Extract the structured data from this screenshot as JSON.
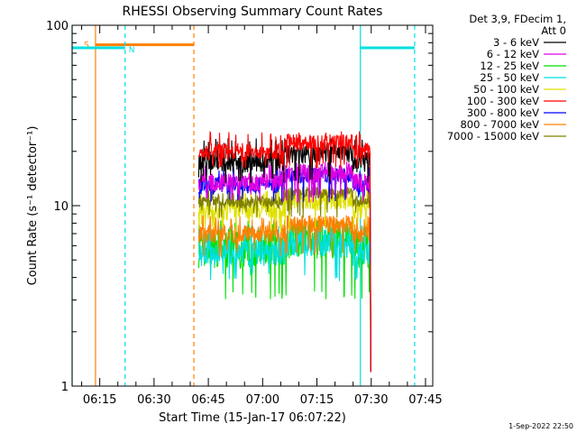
{
  "chart_data": {
    "type": "line",
    "title": "RHESSI Observing Summary Count Rates",
    "xlabel": "Start Time (15-Jan-17 06:07:22)",
    "ylabel": "Count Rate (s⁻¹ detector⁻¹)",
    "yscale": "log",
    "ylim": [
      1,
      100
    ],
    "xlim": [
      "06:07:22",
      "07:47:00"
    ],
    "x_tick_labels": [
      "06:15",
      "06:30",
      "06:45",
      "07:00",
      "07:15",
      "07:30",
      "07:45"
    ],
    "y_tick_labels": [
      "1",
      "10",
      "100"
    ],
    "legend_header": [
      "Det 3,9, FDecim 1,",
      "Att 0"
    ],
    "legend_position": "top-right",
    "footer_date": "1-Sep-2022 22:50",
    "data_start": "06:42:20",
    "data_end": "07:29:40",
    "series": [
      {
        "name": "3 - 6 keV",
        "color": "#000000",
        "level": 17.5,
        "upper": 23,
        "lower": 14
      },
      {
        "name": "6 - 12 keV",
        "color": "#e000e0",
        "level": 13.5,
        "upper": 17,
        "lower": 11
      },
      {
        "name": "12 - 25 keV",
        "color": "#00e000",
        "level": 5.8,
        "upper": 8,
        "lower": 3.2
      },
      {
        "name": "25 - 50 keV",
        "color": "#00e0e0",
        "level": 5.5,
        "upper": 7.5,
        "lower": 4
      },
      {
        "name": "50 - 100 keV",
        "color": "#e0e000",
        "level": 9.5,
        "upper": 12,
        "lower": 7.5
      },
      {
        "name": "100 - 300 keV",
        "color": "#ff0000",
        "level": 20,
        "upper": 25,
        "lower": 17
      },
      {
        "name": "300 - 800 keV",
        "color": "#0000ff",
        "level": 13,
        "upper": 16,
        "lower": 11
      },
      {
        "name": "800 - 7000 keV",
        "color": "#ff8000",
        "level": 7,
        "upper": 8.5,
        "lower": 5.5
      },
      {
        "name": "7000 - 15000 keV",
        "color": "#808000",
        "level": 10.5,
        "upper": 12,
        "lower": 9
      }
    ],
    "annotations": [
      {
        "label": "S",
        "type": "saa",
        "color": "#ff8000",
        "start": "06:13:50",
        "end": "06:41:00",
        "level": 78
      },
      {
        "label": "N",
        "type": "night",
        "color": "#00e0e0",
        "start": "06:07:22",
        "end": "06:22:00",
        "level": 75
      },
      {
        "label": "",
        "type": "night",
        "color": "#00e0e0",
        "start": "07:27:00",
        "end": "07:42:00",
        "level": 75
      }
    ]
  }
}
